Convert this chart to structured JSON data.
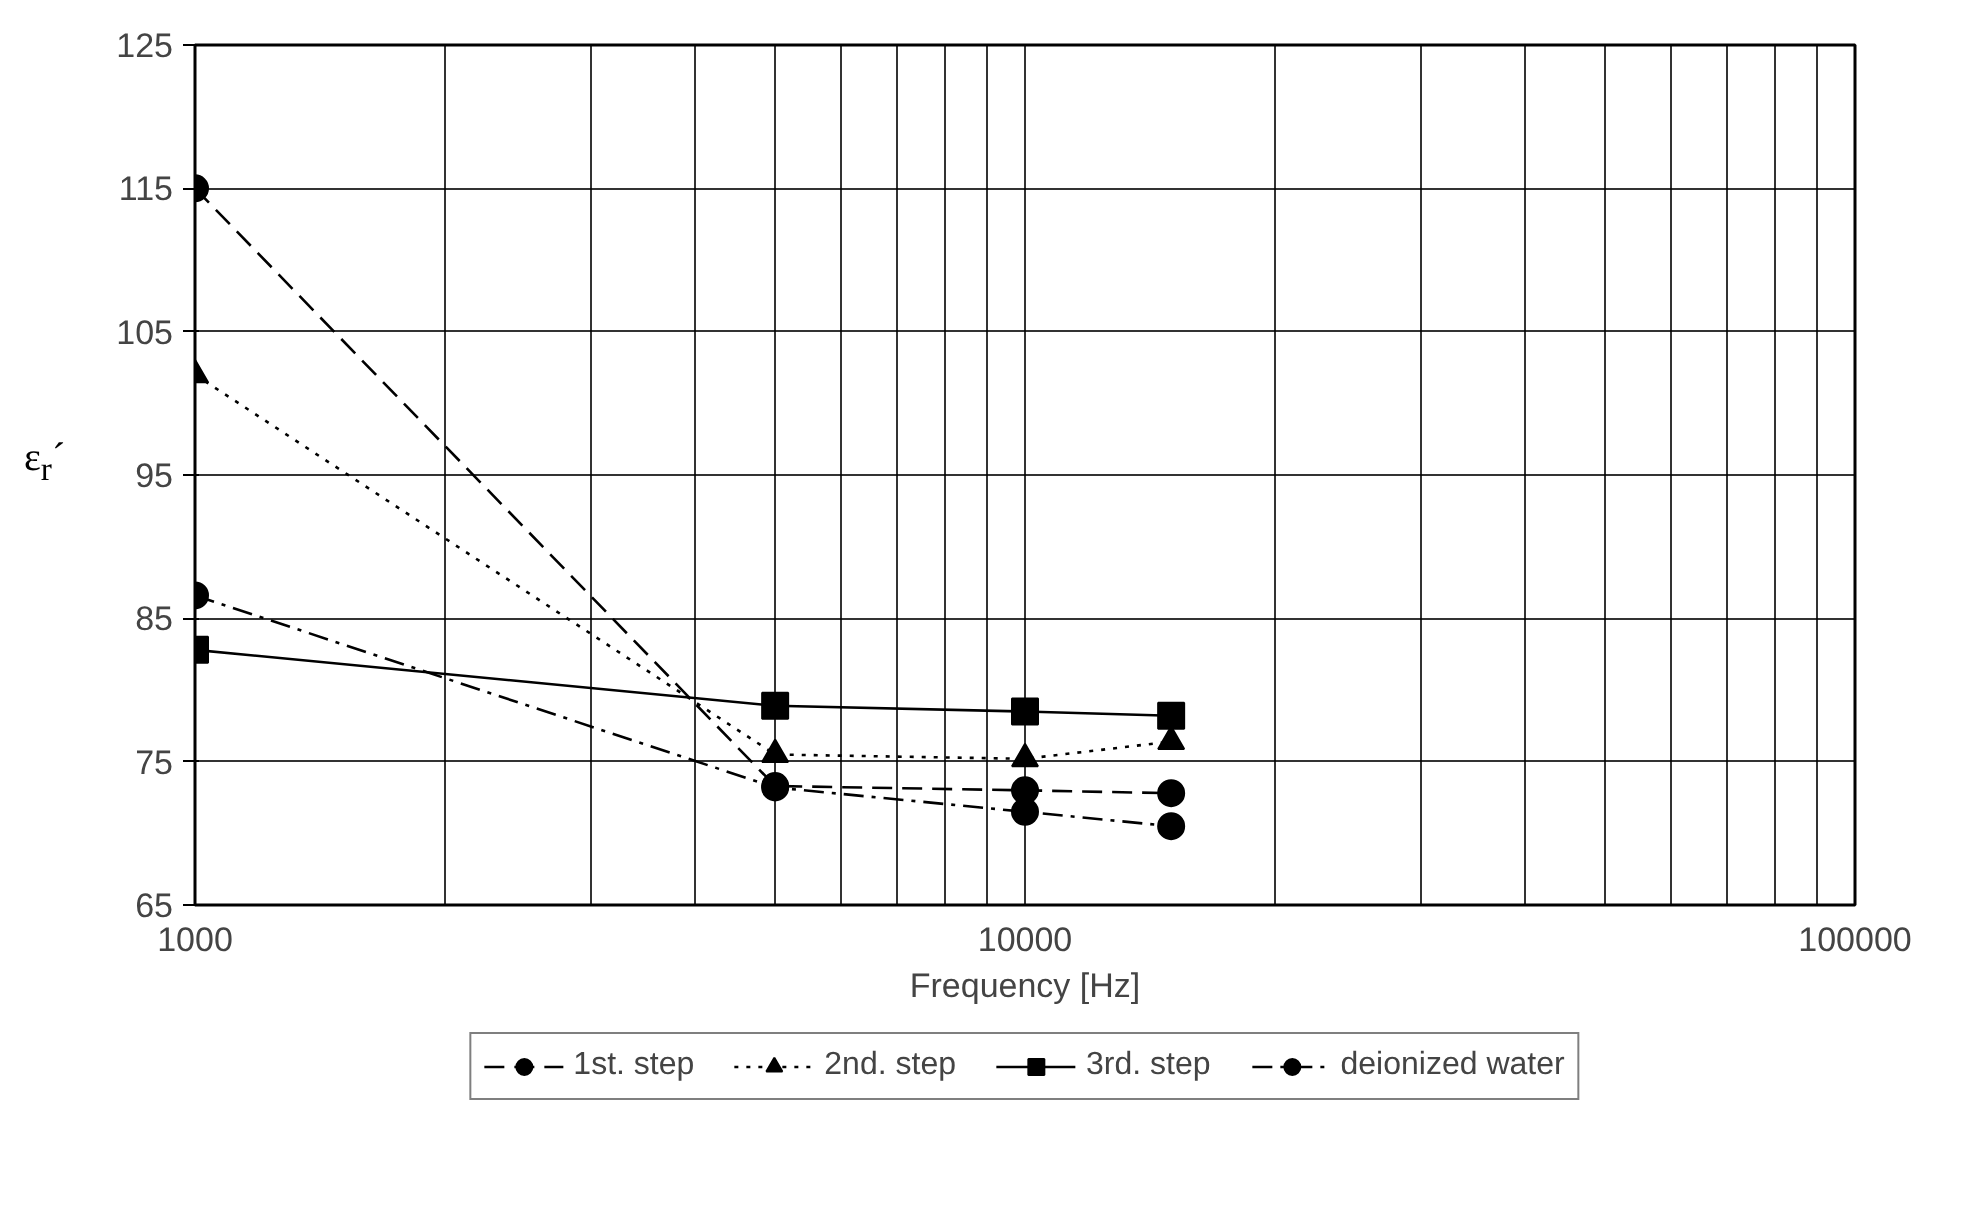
{
  "chart_data": {
    "type": "line",
    "xlabel": "Frequency [Hz]",
    "ylabel": "ε$_{r}$´",
    "log": "x",
    "x": [
      1000,
      5000,
      10000,
      15000
    ],
    "series": [
      {
        "name": "1st. step",
        "color": "#000000",
        "marker": "circle",
        "line_style": "dashed",
        "values": [
          115,
          73.3,
          73.0,
          72.8
        ]
      },
      {
        "name": "2nd. step",
        "color": "#000000",
        "marker": "triangle",
        "line_style": "dotted",
        "values": [
          102,
          75.5,
          75.2,
          76.4
        ]
      },
      {
        "name": "3rd. step",
        "color": "#000000",
        "marker": "square",
        "line_style": "solid",
        "values": [
          82.8,
          78.9,
          78.5,
          78.2
        ]
      },
      {
        "name": "deionized water",
        "color": "#000000",
        "marker": "circle",
        "line_style": "dashdot",
        "values": [
          86.6,
          73.2,
          71.5,
          70.5
        ]
      }
    ],
    "xlim": [
      1000,
      100000
    ],
    "xticks": [
      1000,
      {
        "value": 2000,
        "label": null
      },
      {
        "value": 3000,
        "label": null
      },
      {
        "value": 4000,
        "label": null
      },
      {
        "value": 5000,
        "label": null
      },
      {
        "value": 6000,
        "label": null
      },
      {
        "value": 7000,
        "label": null
      },
      {
        "value": 8000,
        "label": null
      },
      {
        "value": 9000,
        "label": null
      },
      10000,
      {
        "value": 20000,
        "label": null
      },
      {
        "value": 30000,
        "label": null
      },
      {
        "value": 40000,
        "label": null
      },
      {
        "value": 50000,
        "label": null
      },
      {
        "value": 60000,
        "label": null
      },
      {
        "value": 70000,
        "label": null
      },
      {
        "value": 80000,
        "label": null
      },
      {
        "value": 90000,
        "label": null
      },
      100000
    ],
    "ylim": [
      65,
      125
    ],
    "yticks": [
      65,
      75,
      85,
      95,
      105,
      115,
      125
    ],
    "grid": true,
    "legend": "bottom"
  }
}
